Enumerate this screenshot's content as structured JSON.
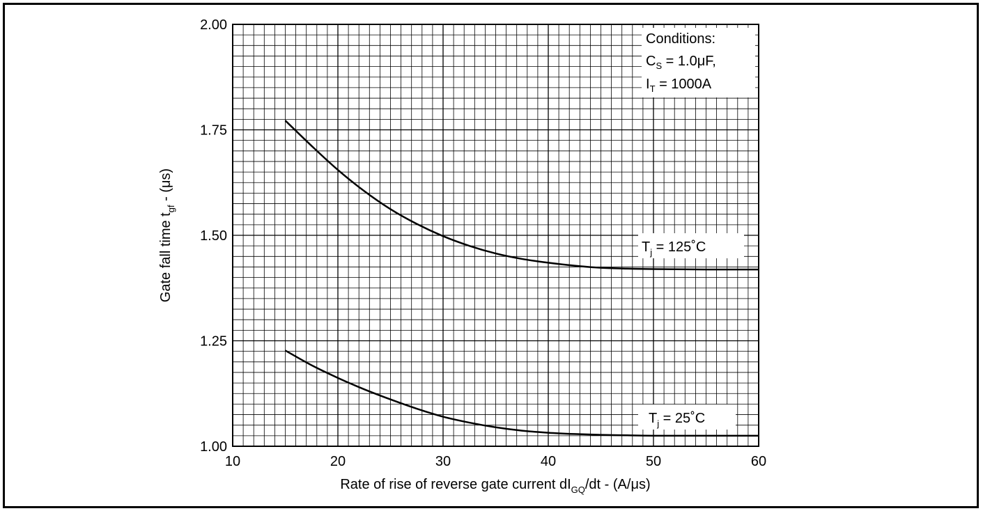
{
  "chart_data": {
    "type": "line",
    "title": "",
    "xlabel": {
      "main": "Rate of rise of reverse gate current dI",
      "sub": "GQ",
      "after": "/dt - (A/μs)"
    },
    "ylabel": {
      "main": "Gate fall time t",
      "sub": "gf",
      "after": " - (μs)"
    },
    "xlim": [
      10,
      60
    ],
    "ylim": [
      1.0,
      2.0
    ],
    "x_ticks": [
      "10",
      "20",
      "30",
      "40",
      "50",
      "60"
    ],
    "y_ticks": [
      "1.00",
      "1.25",
      "1.50",
      "1.75",
      "2.00"
    ],
    "grid": true,
    "conditions": {
      "title": "Conditions:",
      "line1": {
        "main": "C",
        "sub": "S",
        "after": " = 1.0μF,"
      },
      "line2": {
        "main": "I",
        "sub": "T",
        "after": " = 1000A"
      }
    },
    "series": [
      {
        "name": {
          "main": "T",
          "sub": "j",
          "after": " = 125˚C"
        },
        "x": [
          15,
          17.5,
          20,
          22.5,
          25,
          27.5,
          30,
          32.5,
          35,
          37.5,
          40,
          42.5,
          45,
          47.5,
          50,
          55,
          60
        ],
        "y": [
          1.772,
          1.712,
          1.655,
          1.605,
          1.562,
          1.527,
          1.498,
          1.475,
          1.457,
          1.444,
          1.435,
          1.428,
          1.423,
          1.421,
          1.42,
          1.419,
          1.419
        ]
      },
      {
        "name": {
          "main": "T",
          "sub": "j",
          "after": " = 25˚C"
        },
        "x": [
          15,
          17.5,
          20,
          22.5,
          25,
          27.5,
          30,
          32.5,
          35,
          37.5,
          40,
          42.5,
          45,
          47.5,
          50,
          55,
          60
        ],
        "y": [
          1.227,
          1.192,
          1.162,
          1.135,
          1.111,
          1.089,
          1.07,
          1.056,
          1.045,
          1.037,
          1.032,
          1.029,
          1.027,
          1.026,
          1.025,
          1.025,
          1.025
        ]
      }
    ]
  }
}
